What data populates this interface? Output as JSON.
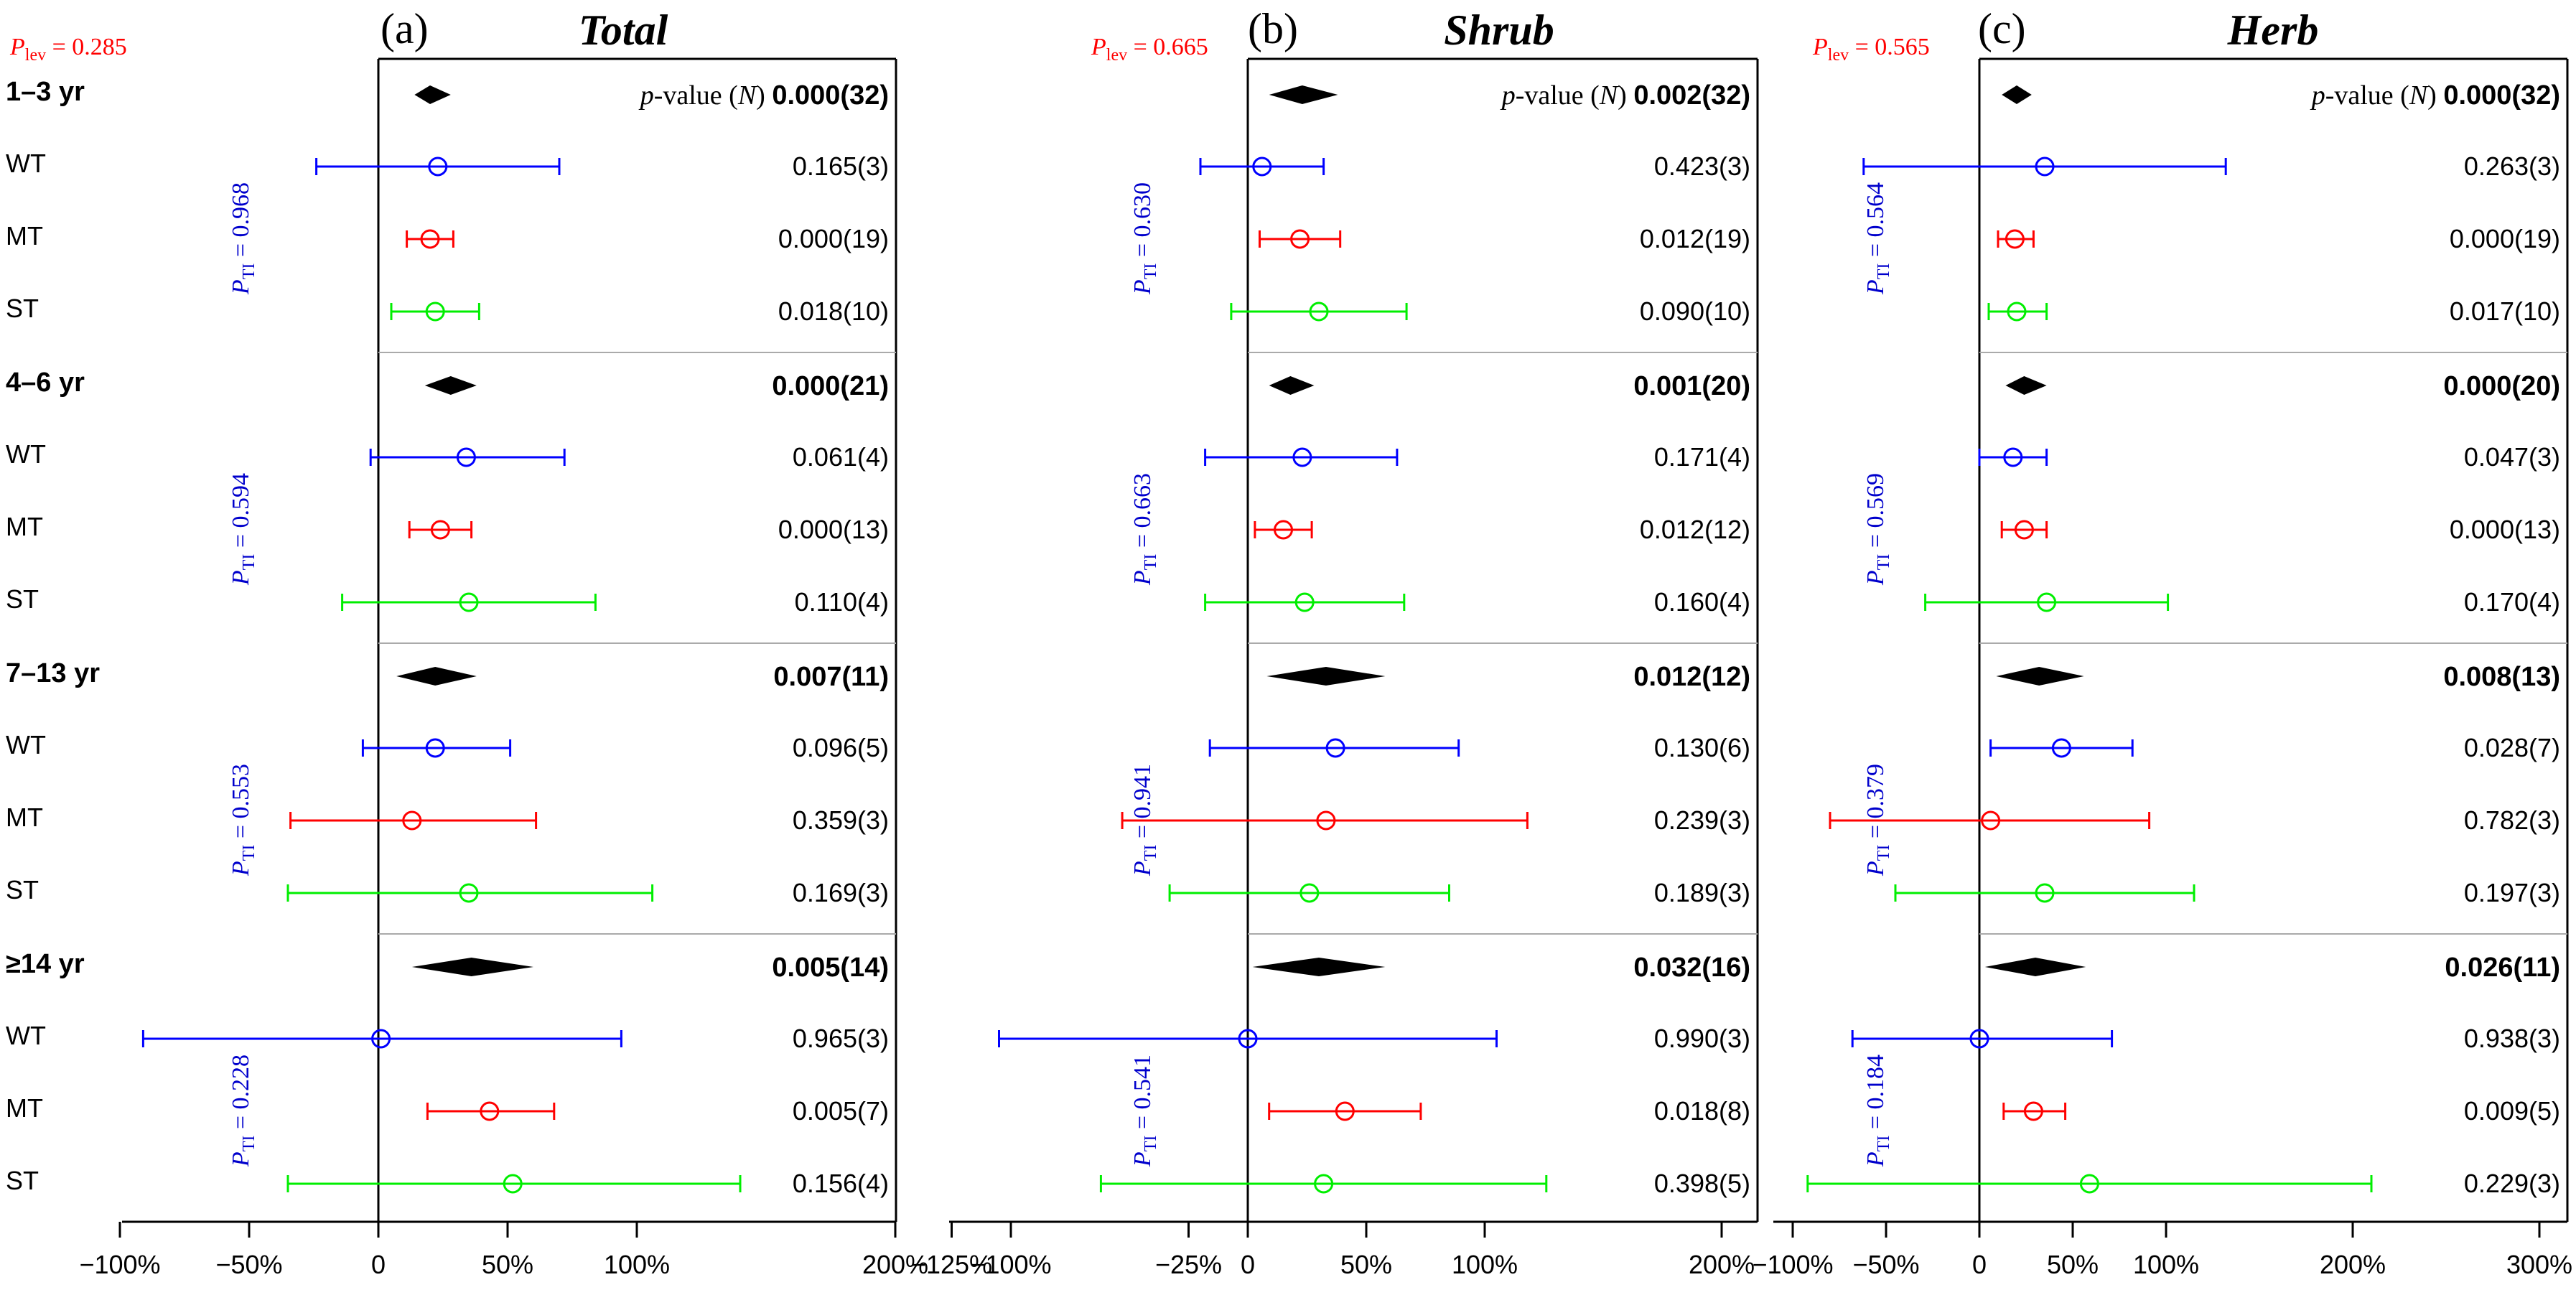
{
  "chart_data": [
    {
      "type": "forest",
      "panel_label": "(a)",
      "title": "Total",
      "p_lev_label": "Plev = 0.285",
      "p_lev_main": "P",
      "p_lev_sub": "lev",
      "p_lev_rest": " = 0.285",
      "pvalue_header": "p-value (N)",
      "pvalue_header_italic": "p",
      "pvalue_header_mid": "-value (",
      "pvalue_header_n": "N",
      "pvalue_header_end": ")",
      "xlim": [
        -100,
        200
      ],
      "xticks": [
        -100,
        -50,
        0,
        50,
        100,
        200
      ],
      "xtick_labels": [
        "−100%",
        "−50%",
        "0",
        "50%",
        "100%",
        "200%"
      ],
      "groups": [
        {
          "label": "1–3 yr",
          "pooled": {
            "mean": 20,
            "lower": 14,
            "upper": 28,
            "pvalue": "0.000(32)"
          },
          "pti_label": "PTI = 0.968",
          "pti_main": "P",
          "pti_sub": "TI",
          "pti_rest": " = 0.968",
          "rows": [
            {
              "label": "WT",
              "mean": 23,
              "lower": -24,
              "upper": 70,
              "pvalue": "0.165(3)",
              "color": "#0000ff"
            },
            {
              "label": "MT",
              "mean": 20,
              "lower": 11,
              "upper": 29,
              "pvalue": "0.000(19)",
              "color": "#ff0000"
            },
            {
              "label": "ST",
              "mean": 22,
              "lower": 5,
              "upper": 39,
              "pvalue": "0.018(10)",
              "color": "#00ee00"
            }
          ]
        },
        {
          "label": "4–6 yr",
          "pooled": {
            "mean": 28,
            "lower": 18,
            "upper": 38,
            "pvalue": "0.000(21)"
          },
          "pti_label": "PTI = 0.594",
          "pti_main": "P",
          "pti_sub": "TI",
          "pti_rest": " = 0.594",
          "rows": [
            {
              "label": "WT",
              "mean": 34,
              "lower": -3,
              "upper": 72,
              "pvalue": "0.061(4)",
              "color": "#0000ff"
            },
            {
              "label": "MT",
              "mean": 24,
              "lower": 12,
              "upper": 36,
              "pvalue": "0.000(13)",
              "color": "#ff0000"
            },
            {
              "label": "ST",
              "mean": 35,
              "lower": -14,
              "upper": 84,
              "pvalue": "0.110(4)",
              "color": "#00ee00"
            }
          ]
        },
        {
          "label": "7–13 yr",
          "pooled": {
            "mean": 22,
            "lower": 7,
            "upper": 38,
            "pvalue": "0.007(11)"
          },
          "pti_label": "PTI = 0.553",
          "pti_main": "P",
          "pti_sub": "TI",
          "pti_rest": " = 0.553",
          "rows": [
            {
              "label": "WT",
              "mean": 22,
              "lower": -6,
              "upper": 51,
              "pvalue": "0.096(5)",
              "color": "#0000ff"
            },
            {
              "label": "MT",
              "mean": 13,
              "lower": -34,
              "upper": 61,
              "pvalue": "0.359(3)",
              "color": "#ff0000"
            },
            {
              "label": "ST",
              "mean": 35,
              "lower": -35,
              "upper": 106,
              "pvalue": "0.169(3)",
              "color": "#00ee00"
            }
          ]
        },
        {
          "label": "≥14 yr",
          "pooled": {
            "mean": 36,
            "lower": 13,
            "upper": 60,
            "pvalue": "0.005(14)"
          },
          "pti_label": "PTI = 0.228",
          "pti_main": "P",
          "pti_sub": "TI",
          "pti_rest": " = 0.228",
          "rows": [
            {
              "label": "WT",
              "mean": 1,
              "lower": -91,
              "upper": 94,
              "pvalue": "0.965(3)",
              "color": "#0000ff"
            },
            {
              "label": "MT",
              "mean": 43,
              "lower": 19,
              "upper": 68,
              "pvalue": "0.005(7)",
              "color": "#ff0000"
            },
            {
              "label": "ST",
              "mean": 52,
              "lower": -35,
              "upper": 140,
              "pvalue": "0.156(4)",
              "color": "#00ee00"
            }
          ]
        }
      ]
    },
    {
      "type": "forest",
      "panel_label": "(b)",
      "title": "Shrub",
      "p_lev_label": "Plev = 0.665",
      "p_lev_main": "P",
      "p_lev_sub": "lev",
      "p_lev_rest": " = 0.665",
      "pvalue_header": "p-value (N)",
      "pvalue_header_italic": "p",
      "pvalue_header_mid": "-value (",
      "pvalue_header_n": "N",
      "pvalue_header_end": ")",
      "xlim": [
        -125,
        200
      ],
      "xticks": [
        -125,
        -100,
        -25,
        0,
        50,
        100,
        200
      ],
      "xtick_labels": [
        "−125%",
        "−100%",
        "−25%",
        "0",
        "50%",
        "100%",
        "200%"
      ],
      "groups": [
        {
          "label": "1–3 yr",
          "pooled": {
            "mean": 23,
            "lower": 9,
            "upper": 38,
            "pvalue": "0.002(32)"
          },
          "pti_label": "PTI = 0.630",
          "pti_main": "P",
          "pti_sub": "TI",
          "pti_rest": " = 0.630",
          "rows": [
            {
              "label": "WT",
              "mean": 6,
              "lower": -20,
              "upper": 32,
              "pvalue": "0.423(3)",
              "color": "#0000ff"
            },
            {
              "label": "MT",
              "mean": 22,
              "lower": 5,
              "upper": 39,
              "pvalue": "0.012(19)",
              "color": "#ff0000"
            },
            {
              "label": "ST",
              "mean": 30,
              "lower": -7,
              "upper": 67,
              "pvalue": "0.090(10)",
              "color": "#00ee00"
            }
          ]
        },
        {
          "label": "4–6 yr",
          "pooled": {
            "mean": 18,
            "lower": 9,
            "upper": 28,
            "pvalue": "0.001(20)"
          },
          "pti_label": "PTI = 0.663",
          "pti_main": "P",
          "pti_sub": "TI",
          "pti_rest": " = 0.663",
          "rows": [
            {
              "label": "WT",
              "mean": 23,
              "lower": -18,
              "upper": 63,
              "pvalue": "0.171(4)",
              "color": "#0000ff"
            },
            {
              "label": "MT",
              "mean": 15,
              "lower": 3,
              "upper": 27,
              "pvalue": "0.012(12)",
              "color": "#ff0000"
            },
            {
              "label": "ST",
              "mean": 24,
              "lower": -18,
              "upper": 66,
              "pvalue": "0.160(4)",
              "color": "#00ee00"
            }
          ]
        },
        {
          "label": "7–13 yr",
          "pooled": {
            "mean": 33,
            "lower": 8,
            "upper": 58,
            "pvalue": "0.012(12)"
          },
          "pti_label": "PTI = 0.941",
          "pti_main": "P",
          "pti_sub": "TI",
          "pti_rest": " = 0.941",
          "rows": [
            {
              "label": "WT",
              "mean": 37,
              "lower": -16,
              "upper": 89,
              "pvalue": "0.130(6)",
              "color": "#0000ff"
            },
            {
              "label": "MT",
              "mean": 33,
              "lower": -53,
              "upper": 118,
              "pvalue": "0.239(3)",
              "color": "#ff0000"
            },
            {
              "label": "ST",
              "mean": 26,
              "lower": -33,
              "upper": 85,
              "pvalue": "0.189(3)",
              "color": "#00ee00"
            }
          ]
        },
        {
          "label": "≥14 yr",
          "pooled": {
            "mean": 30,
            "lower": 2,
            "upper": 58,
            "pvalue": "0.032(16)"
          },
          "pti_label": "PTI = 0.541",
          "pti_main": "P",
          "pti_sub": "TI",
          "pti_rest": " = 0.541",
          "rows": [
            {
              "label": "WT",
              "mean": 0,
              "lower": -105,
              "upper": 105,
              "pvalue": "0.990(3)",
              "color": "#0000ff"
            },
            {
              "label": "MT",
              "mean": 41,
              "lower": 9,
              "upper": 73,
              "pvalue": "0.018(8)",
              "color": "#ff0000"
            },
            {
              "label": "ST",
              "mean": 32,
              "lower": -62,
              "upper": 126,
              "pvalue": "0.398(5)",
              "color": "#00ee00"
            }
          ]
        }
      ]
    },
    {
      "type": "forest",
      "panel_label": "(c)",
      "title": "Herb",
      "p_lev_label": "Plev = 0.565",
      "p_lev_main": "P",
      "p_lev_sub": "lev",
      "p_lev_rest": " = 0.565",
      "pvalue_header": "p-value (N)",
      "pvalue_header_italic": "p",
      "pvalue_header_mid": "-value (",
      "pvalue_header_n": "N",
      "pvalue_header_end": ")",
      "xlim": [
        -100,
        300
      ],
      "xticks": [
        -100,
        -50,
        0,
        50,
        100,
        200,
        300
      ],
      "xtick_labels": [
        "−100%",
        "−50%",
        "0",
        "50%",
        "100%",
        "200%",
        "300%"
      ],
      "groups": [
        {
          "label": "1–3 yr",
          "pooled": {
            "mean": 20,
            "lower": 12,
            "upper": 28,
            "pvalue": "0.000(32)"
          },
          "pti_label": "PTI = 0.564",
          "pti_main": "P",
          "pti_sub": "TI",
          "pti_rest": " = 0.564",
          "rows": [
            {
              "label": "WT",
              "mean": 35,
              "lower": -62,
              "upper": 132,
              "pvalue": "0.263(3)",
              "color": "#0000ff"
            },
            {
              "label": "MT",
              "mean": 19,
              "lower": 10,
              "upper": 29,
              "pvalue": "0.000(19)",
              "color": "#ff0000"
            },
            {
              "label": "ST",
              "mean": 20,
              "lower": 5,
              "upper": 36,
              "pvalue": "0.017(10)",
              "color": "#00ee00"
            }
          ]
        },
        {
          "label": "4–6 yr",
          "pooled": {
            "mean": 24,
            "lower": 14,
            "upper": 36,
            "pvalue": "0.000(20)"
          },
          "pti_label": "PTI = 0.569",
          "pti_main": "P",
          "pti_sub": "TI",
          "pti_rest": " = 0.569",
          "rows": [
            {
              "label": "WT",
              "mean": 18,
              "lower": 0,
              "upper": 36,
              "pvalue": "0.047(3)",
              "color": "#0000ff"
            },
            {
              "label": "MT",
              "mean": 24,
              "lower": 12,
              "upper": 36,
              "pvalue": "0.000(13)",
              "color": "#ff0000"
            },
            {
              "label": "ST",
              "mean": 36,
              "lower": -29,
              "upper": 101,
              "pvalue": "0.170(4)",
              "color": "#00ee00"
            }
          ]
        },
        {
          "label": "7–13 yr",
          "pooled": {
            "mean": 32,
            "lower": 9,
            "upper": 56,
            "pvalue": "0.008(13)"
          },
          "pti_label": "PTI = 0.379",
          "pti_main": "P",
          "pti_sub": "TI",
          "pti_rest": " = 0.379",
          "rows": [
            {
              "label": "WT",
              "mean": 44,
              "lower": 6,
              "upper": 82,
              "pvalue": "0.028(7)",
              "color": "#0000ff"
            },
            {
              "label": "MT",
              "mean": 6,
              "lower": -80,
              "upper": 91,
              "pvalue": "0.782(3)",
              "color": "#ff0000"
            },
            {
              "label": "ST",
              "mean": 35,
              "lower": -45,
              "upper": 115,
              "pvalue": "0.197(3)",
              "color": "#00ee00"
            }
          ]
        },
        {
          "label": "≥14 yr",
          "pooled": {
            "mean": 30,
            "lower": 3,
            "upper": 57,
            "pvalue": "0.026(11)"
          },
          "pti_label": "PTI = 0.184",
          "pti_main": "P",
          "pti_sub": "TI",
          "pti_rest": " = 0.184",
          "rows": [
            {
              "label": "WT",
              "mean": 0,
              "lower": -68,
              "upper": 71,
              "pvalue": "0.938(3)",
              "color": "#0000ff"
            },
            {
              "label": "MT",
              "mean": 29,
              "lower": 13,
              "upper": 46,
              "pvalue": "0.009(5)",
              "color": "#ff0000"
            },
            {
              "label": "ST",
              "mean": 59,
              "lower": -92,
              "upper": 210,
              "pvalue": "0.229(3)",
              "color": "#00ee00"
            }
          ]
        }
      ]
    }
  ]
}
